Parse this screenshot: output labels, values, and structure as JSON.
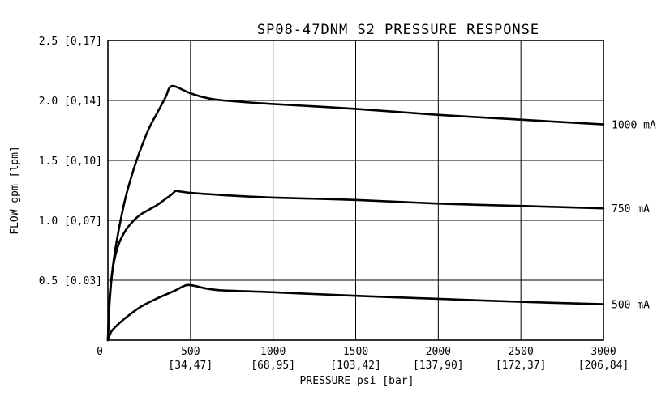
{
  "chart_data": {
    "type": "line",
    "title": "SP08-47DNM S2 PRESSURE RESPONSE",
    "xlabel": "PRESSURE psi [bar]",
    "ylabel": "FLOW gpm [lpm]",
    "xlim": [
      0,
      3000
    ],
    "ylim": [
      0,
      2.5
    ],
    "grid": true,
    "x_ticks": [
      {
        "value": 0,
        "label": "0",
        "sublabel": ""
      },
      {
        "value": 500,
        "label": "500",
        "sublabel": "[34,47]"
      },
      {
        "value": 1000,
        "label": "1000",
        "sublabel": "[68,95]"
      },
      {
        "value": 1500,
        "label": "1500",
        "sublabel": "[103,42]"
      },
      {
        "value": 2000,
        "label": "2000",
        "sublabel": "[137,90]"
      },
      {
        "value": 2500,
        "label": "2500",
        "sublabel": "[172,37]"
      },
      {
        "value": 3000,
        "label": "3000",
        "sublabel": "[206,84]"
      }
    ],
    "y_ticks": [
      {
        "value": 0.5,
        "label": "0.5 [0.03]"
      },
      {
        "value": 1.0,
        "label": "1.0 [0,07]"
      },
      {
        "value": 1.5,
        "label": "1.5 [0,10]"
      },
      {
        "value": 2.0,
        "label": "2.0 [0,14]"
      },
      {
        "value": 2.5,
        "label": "2.5 [0,17]"
      }
    ],
    "series": [
      {
        "name": "1000 mA",
        "points": [
          [
            0,
            0
          ],
          [
            10,
            0.3
          ],
          [
            25,
            0.55
          ],
          [
            50,
            0.8
          ],
          [
            100,
            1.15
          ],
          [
            150,
            1.4
          ],
          [
            200,
            1.6
          ],
          [
            250,
            1.77
          ],
          [
            300,
            1.9
          ],
          [
            350,
            2.03
          ],
          [
            370,
            2.1
          ],
          [
            390,
            2.12
          ],
          [
            420,
            2.11
          ],
          [
            500,
            2.06
          ],
          [
            600,
            2.02
          ],
          [
            700,
            2.0
          ],
          [
            1000,
            1.97
          ],
          [
            1500,
            1.93
          ],
          [
            2000,
            1.88
          ],
          [
            2500,
            1.84
          ],
          [
            3000,
            1.8
          ]
        ]
      },
      {
        "name": "750 mA",
        "points": [
          [
            0,
            0
          ],
          [
            10,
            0.35
          ],
          [
            30,
            0.6
          ],
          [
            60,
            0.78
          ],
          [
            100,
            0.9
          ],
          [
            150,
            0.99
          ],
          [
            200,
            1.05
          ],
          [
            250,
            1.09
          ],
          [
            300,
            1.13
          ],
          [
            350,
            1.18
          ],
          [
            390,
            1.22
          ],
          [
            410,
            1.245
          ],
          [
            440,
            1.24
          ],
          [
            500,
            1.23
          ],
          [
            700,
            1.21
          ],
          [
            1000,
            1.19
          ],
          [
            1500,
            1.17
          ],
          [
            2000,
            1.14
          ],
          [
            2500,
            1.12
          ],
          [
            3000,
            1.1
          ]
        ]
      },
      {
        "name": "500 mA",
        "points": [
          [
            0,
            0
          ],
          [
            20,
            0.07
          ],
          [
            60,
            0.13
          ],
          [
            120,
            0.2
          ],
          [
            200,
            0.28
          ],
          [
            300,
            0.35
          ],
          [
            400,
            0.41
          ],
          [
            450,
            0.445
          ],
          [
            480,
            0.46
          ],
          [
            520,
            0.455
          ],
          [
            600,
            0.43
          ],
          [
            700,
            0.415
          ],
          [
            1000,
            0.4
          ],
          [
            1500,
            0.37
          ],
          [
            2000,
            0.345
          ],
          [
            2500,
            0.32
          ],
          [
            3000,
            0.3
          ]
        ]
      }
    ]
  }
}
